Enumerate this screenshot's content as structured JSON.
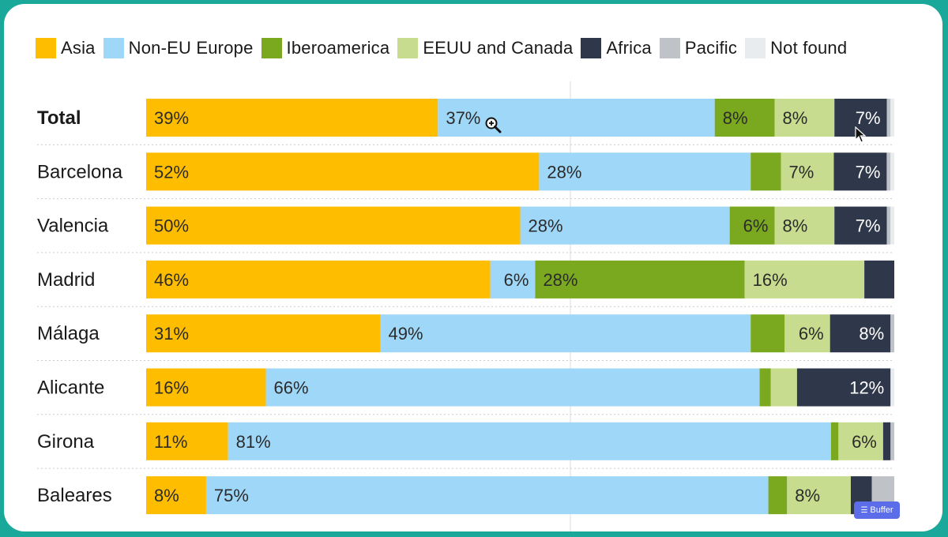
{
  "chart_data": {
    "type": "bar",
    "orientation": "horizontal",
    "stacked": true,
    "percent": true,
    "legend_position": "top",
    "grid": false,
    "series": [
      {
        "name": "Asia",
        "color": "#ffbd00"
      },
      {
        "name": "Non-EU Europe",
        "color": "#9fd7f8"
      },
      {
        "name": "Iberoamerica",
        "color": "#7aa81f"
      },
      {
        "name": "EEUU and Canada",
        "color": "#c7dc8f"
      },
      {
        "name": "Africa",
        "color": "#2f384a"
      },
      {
        "name": "Pacific",
        "color": "#bfc2c7"
      },
      {
        "name": "Not found",
        "color": "#e9ecef"
      }
    ],
    "rows": [
      {
        "label": "Total",
        "bold": true,
        "values": [
          39,
          37,
          8,
          8,
          7,
          0.5,
          0.5
        ],
        "labels": [
          "39%",
          "37%",
          "8%",
          "8%",
          "7%",
          "",
          ""
        ]
      },
      {
        "label": "Barcelona",
        "bold": false,
        "values": [
          52,
          28,
          4,
          7,
          7,
          0.5,
          0.5
        ],
        "labels": [
          "52%",
          "28%",
          "",
          "7%",
          "7%",
          "",
          ""
        ]
      },
      {
        "label": "Valencia",
        "bold": false,
        "values": [
          50,
          28,
          6,
          8,
          7,
          0.5,
          0.5
        ],
        "labels": [
          "50%",
          "28%",
          "6%",
          "8%",
          "7%",
          "",
          ""
        ]
      },
      {
        "label": "Madrid",
        "bold": false,
        "values": [
          46,
          6,
          28,
          16,
          4,
          0,
          0
        ],
        "labels": [
          "46%",
          "6%",
          "28%",
          "16%",
          "",
          "",
          ""
        ]
      },
      {
        "label": "Málaga",
        "bold": false,
        "values": [
          31,
          49,
          4.5,
          6,
          8,
          0.5,
          0
        ],
        "labels": [
          "31%",
          "49%",
          "",
          "6%",
          "8%",
          "",
          ""
        ]
      },
      {
        "label": "Alicante",
        "bold": false,
        "values": [
          16,
          66,
          1.5,
          3.5,
          12.5,
          0,
          0.5
        ],
        "labels": [
          "16%",
          "66%",
          "",
          "",
          "12%",
          "",
          ""
        ]
      },
      {
        "label": "Girona",
        "bold": false,
        "values": [
          11,
          81,
          1,
          6,
          1,
          0.5,
          0
        ],
        "labels": [
          "11%",
          "81%",
          "",
          "6%",
          "",
          "",
          ""
        ]
      },
      {
        "label": "Baleares",
        "bold": false,
        "values": [
          8,
          75,
          2.5,
          8.5,
          2.8,
          3,
          0
        ],
        "labels": [
          "8%",
          "75%",
          "",
          "8%",
          "",
          "",
          ""
        ]
      }
    ]
  },
  "overlay": {
    "buffer_badge": "Buffer"
  }
}
